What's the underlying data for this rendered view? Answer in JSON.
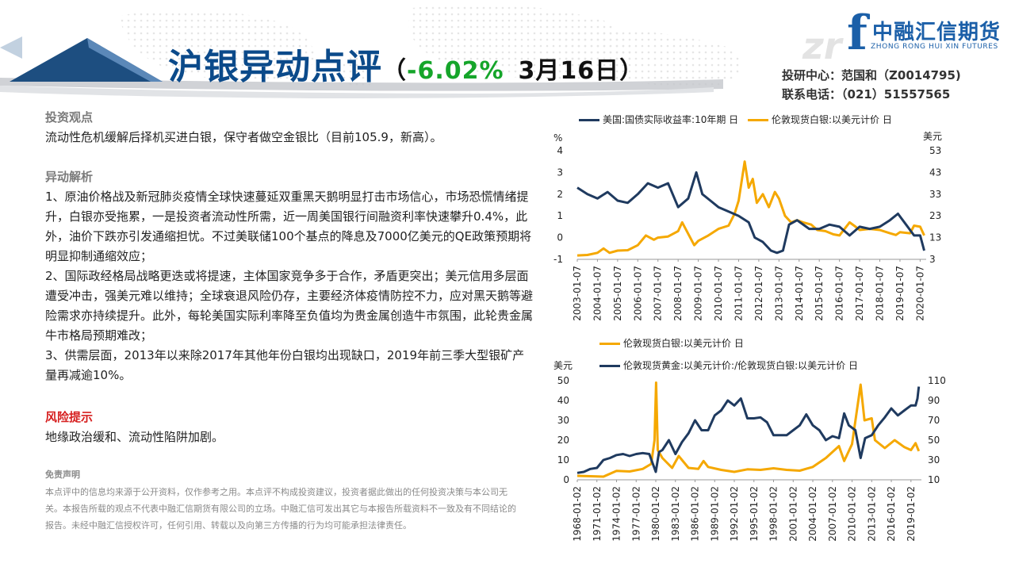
{
  "header": {
    "title_part1": "沪银",
    "title_part2": "异动点评",
    "paren_open": "（",
    "pct": "-6.02%",
    "date": "3月16日",
    "paren_close": "）"
  },
  "logo": {
    "cn": "中融汇信期货",
    "en": "ZHONG RONG HUI XIN FUTURES",
    "mark": "f"
  },
  "contact": {
    "line1": "投研中心：范国和（Z0014795)",
    "line2": "联系电话：（021）51557565"
  },
  "sections": {
    "view_title": "投资观点",
    "view_text": "流动性危机缓解后择机买进白银，保守者做空金银比（目前105.9，新高）。",
    "analysis_title": "异动解析",
    "analysis_items": [
      "1、原油价格战及新冠肺炎疫情全球快速蔓延双重黑天鹅明显打击市场信心，市场恐慌情绪提升，白银亦受拖累，一是投资者流动性所需，近一周美国银行间融资利率快速攀升0.4%，此外，油价下跌亦引发通缩担忧。不过美联储100个基点的降息及7000亿美元的QE政策预期将明显抑制通缩效应；",
      "2、国际政经格局战略更迭或将提速，主体国家竞争多于合作，矛盾更突出；美元信用多层面遭受冲击，强美元难以维持；全球衰退风险仍存，主要经济体疫情防控不力，应对黑天鹅等避险需求亦持续提升。此外，每轮美国实际利率降至负值均为贵金属创造牛市氛围，此轮贵金属牛市格局预期难改；",
      "3、供需层面，2013年以来除2017年其他年份白银均出现缺口，2019年前三季大型银矿产量再减逾10%。"
    ],
    "risk_title": "风险提示",
    "risk_text": "地缘政治缓和、流动性陷阱加剧。",
    "disclaimer_title": "免责声明",
    "disclaimer_text": "本点评中的信息均来源于公开资料，仅作参考之用。本点评不构成投资建议，投资者据此做出的任何投资决策与本公司无关。本报告所载的观点不代表中融汇信期货有限公司的立场。中融汇信可发出其它与本报告所载资料不一致及有不同结论的报告。未经中融汇信授权许可，任何引用、转载以及向第三方传播的行为均可能承担法律责任。"
  },
  "colors": {
    "navy": "#1f3a5f",
    "gold": "#f5a800",
    "title_blue": "#0b4a8a",
    "green": "#15a52a",
    "red": "#d61f1f"
  },
  "chart_data": [
    {
      "type": "line",
      "legend_position": "top",
      "left_unit": "%",
      "right_unit": "美元",
      "left_ylim": [
        -1,
        4
      ],
      "left_ticks": [
        "-1",
        "0",
        "1",
        "2",
        "3",
        "4"
      ],
      "right_ylim": [
        3,
        53
      ],
      "right_ticks": [
        "3",
        "13",
        "23",
        "33",
        "43",
        "53"
      ],
      "x_ticks": [
        "2003-01-07",
        "2004-01-07",
        "2005-01-07",
        "2006-01-07",
        "2007-01-07",
        "2008-01-07",
        "2009-01-07",
        "2010-01-07",
        "2011-01-07",
        "2012-01-07",
        "2013-01-07",
        "2014-01-07",
        "2015-01-07",
        "2016-01-07",
        "2017-01-07",
        "2018-01-07",
        "2019-01-07",
        "2020-01-07"
      ],
      "series": [
        {
          "name": "美国:国债实际收益率:10年期 日",
          "axis": "left",
          "color": "#1f3a5f",
          "points": [
            [
              2003.0,
              2.3
            ],
            [
              2003.5,
              2.0
            ],
            [
              2004.0,
              1.8
            ],
            [
              2004.5,
              2.1
            ],
            [
              2005.0,
              1.7
            ],
            [
              2005.5,
              1.6
            ],
            [
              2006.0,
              2.0
            ],
            [
              2006.5,
              2.5
            ],
            [
              2007.0,
              2.3
            ],
            [
              2007.5,
              2.5
            ],
            [
              2008.0,
              1.4
            ],
            [
              2008.5,
              1.8
            ],
            [
              2008.9,
              3.0
            ],
            [
              2009.2,
              2.0
            ],
            [
              2009.6,
              1.7
            ],
            [
              2010.0,
              1.4
            ],
            [
              2010.5,
              1.2
            ],
            [
              2011.0,
              1.0
            ],
            [
              2011.5,
              0.7
            ],
            [
              2011.8,
              0.0
            ],
            [
              2012.2,
              -0.2
            ],
            [
              2012.6,
              -0.6
            ],
            [
              2012.9,
              -0.7
            ],
            [
              2013.2,
              -0.6
            ],
            [
              2013.5,
              0.6
            ],
            [
              2013.9,
              0.8
            ],
            [
              2014.5,
              0.4
            ],
            [
              2015.0,
              0.4
            ],
            [
              2015.5,
              0.6
            ],
            [
              2016.0,
              0.5
            ],
            [
              2016.5,
              0.1
            ],
            [
              2017.0,
              0.5
            ],
            [
              2017.5,
              0.4
            ],
            [
              2018.0,
              0.5
            ],
            [
              2018.5,
              0.8
            ],
            [
              2018.9,
              1.1
            ],
            [
              2019.3,
              0.6
            ],
            [
              2019.7,
              0.1
            ],
            [
              2020.0,
              0.1
            ],
            [
              2020.2,
              -0.6
            ]
          ]
        },
        {
          "name": "伦敦现货白银:以美元计价 日",
          "axis": "right",
          "color": "#f5a800",
          "points": [
            [
              2003.0,
              4.8
            ],
            [
              2003.5,
              5.0
            ],
            [
              2004.0,
              6.0
            ],
            [
              2004.3,
              8.0
            ],
            [
              2004.6,
              6.0
            ],
            [
              2005.0,
              7.0
            ],
            [
              2005.5,
              7.2
            ],
            [
              2006.0,
              9.5
            ],
            [
              2006.4,
              14.0
            ],
            [
              2006.8,
              12.0
            ],
            [
              2007.0,
              13.0
            ],
            [
              2007.5,
              13.5
            ],
            [
              2008.0,
              16.0
            ],
            [
              2008.2,
              20.0
            ],
            [
              2008.8,
              9.5
            ],
            [
              2009.0,
              11.5
            ],
            [
              2009.5,
              14.0
            ],
            [
              2010.0,
              17.0
            ],
            [
              2010.5,
              18.5
            ],
            [
              2010.8,
              24.0
            ],
            [
              2011.0,
              30.0
            ],
            [
              2011.3,
              48.0
            ],
            [
              2011.5,
              36.0
            ],
            [
              2011.7,
              40.0
            ],
            [
              2011.9,
              29.0
            ],
            [
              2012.2,
              33.0
            ],
            [
              2012.5,
              27.0
            ],
            [
              2012.8,
              34.0
            ],
            [
              2013.0,
              31.0
            ],
            [
              2013.3,
              23.0
            ],
            [
              2013.6,
              20.0
            ],
            [
              2013.9,
              21.0
            ],
            [
              2014.2,
              20.0
            ],
            [
              2014.6,
              19.0
            ],
            [
              2014.9,
              16.5
            ],
            [
              2015.3,
              16.0
            ],
            [
              2015.7,
              14.5
            ],
            [
              2016.0,
              14.0
            ],
            [
              2016.5,
              20.0
            ],
            [
              2016.8,
              18.0
            ],
            [
              2017.0,
              16.5
            ],
            [
              2017.5,
              17.0
            ],
            [
              2018.0,
              16.5
            ],
            [
              2018.5,
              15.0
            ],
            [
              2018.8,
              14.2
            ],
            [
              2019.0,
              15.5
            ],
            [
              2019.5,
              15.0
            ],
            [
              2019.7,
              18.5
            ],
            [
              2020.0,
              18.0
            ],
            [
              2020.2,
              14.0
            ]
          ]
        }
      ]
    },
    {
      "type": "line",
      "legend_position": "top",
      "left_unit": "美元",
      "left_ylim": [
        0,
        50
      ],
      "left_ticks": [
        "0",
        "10",
        "20",
        "30",
        "40",
        "50"
      ],
      "right_ylim": [
        10,
        110
      ],
      "right_ticks": [
        "10",
        "30",
        "50",
        "70",
        "90",
        "110"
      ],
      "x_ticks": [
        "1968-01-02",
        "1971-01-02",
        "1974-01-02",
        "1977-01-02",
        "1980-01-02",
        "1983-01-02",
        "1986-01-02",
        "1989-01-02",
        "1992-01-02",
        "1995-01-02",
        "1998-01-02",
        "2001-01-02",
        "2004-01-02",
        "2007-01-02",
        "2010-01-02",
        "2013-01-02",
        "2016-01-02",
        "2019-01-02"
      ],
      "series": [
        {
          "name": "伦敦现货白银:以美元计价 日",
          "axis": "left",
          "color": "#f5a800",
          "points": [
            [
              1968.0,
              2.0
            ],
            [
              1972.0,
              1.6
            ],
            [
              1974.0,
              4.5
            ],
            [
              1976.0,
              4.2
            ],
            [
              1978.0,
              5.5
            ],
            [
              1979.3,
              8.0
            ],
            [
              1979.8,
              20.0
            ],
            [
              1980.05,
              49.0
            ],
            [
              1980.3,
              15.0
            ],
            [
              1981.0,
              11.0
            ],
            [
              1982.5,
              6.0
            ],
            [
              1983.5,
              12.0
            ],
            [
              1985.0,
              6.0
            ],
            [
              1986.5,
              5.5
            ],
            [
              1987.3,
              9.5
            ],
            [
              1988.0,
              6.5
            ],
            [
              1990.0,
              5.0
            ],
            [
              1992.0,
              4.0
            ],
            [
              1994.0,
              5.3
            ],
            [
              1996.0,
              5.0
            ],
            [
              1998.0,
              5.8
            ],
            [
              2000.0,
              5.0
            ],
            [
              2002.0,
              4.6
            ],
            [
              2004.0,
              6.5
            ],
            [
              2006.0,
              11.0
            ],
            [
              2008.0,
              17.0
            ],
            [
              2008.8,
              9.5
            ],
            [
              2010.0,
              18.0
            ],
            [
              2011.3,
              48.0
            ],
            [
              2011.9,
              30.0
            ],
            [
              2013.0,
              31.0
            ],
            [
              2013.5,
              20.0
            ],
            [
              2015.0,
              16.0
            ],
            [
              2016.5,
              20.0
            ],
            [
              2018.0,
              16.5
            ],
            [
              2019.0,
              15.0
            ],
            [
              2019.7,
              18.5
            ],
            [
              2020.2,
              14.5
            ]
          ]
        },
        {
          "name": "伦敦现货黄金:以美元计价:/伦敦现货白银:以美元计价 日",
          "axis": "right",
          "color": "#1f3a5f",
          "points": [
            [
              1968.0,
              17.0
            ],
            [
              1969.0,
              18.0
            ],
            [
              1970.0,
              21.0
            ],
            [
              1971.0,
              22.0
            ],
            [
              1972.0,
              30.0
            ],
            [
              1973.0,
              32.0
            ],
            [
              1974.0,
              35.0
            ],
            [
              1975.0,
              36.0
            ],
            [
              1976.0,
              34.0
            ],
            [
              1977.0,
              36.0
            ],
            [
              1978.0,
              37.0
            ],
            [
              1979.0,
              36.0
            ],
            [
              1980.0,
              18.0
            ],
            [
              1980.5,
              38.0
            ],
            [
              1981.0,
              40.0
            ],
            [
              1982.0,
              50.0
            ],
            [
              1983.0,
              36.0
            ],
            [
              1984.0,
              48.0
            ],
            [
              1985.0,
              57.0
            ],
            [
              1986.0,
              70.0
            ],
            [
              1987.0,
              60.0
            ],
            [
              1988.0,
              60.0
            ],
            [
              1989.0,
              75.0
            ],
            [
              1990.0,
              80.0
            ],
            [
              1991.0,
              90.0
            ],
            [
              1992.0,
              85.0
            ],
            [
              1993.0,
              92.0
            ],
            [
              1994.0,
              72.0
            ],
            [
              1995.0,
              72.0
            ],
            [
              1996.0,
              73.0
            ],
            [
              1997.0,
              68.0
            ],
            [
              1998.0,
              55.0
            ],
            [
              1999.0,
              55.0
            ],
            [
              2000.0,
              55.0
            ],
            [
              2001.0,
              60.0
            ],
            [
              2002.0,
              65.0
            ],
            [
              2003.0,
              76.0
            ],
            [
              2004.0,
              65.0
            ],
            [
              2005.0,
              60.0
            ],
            [
              2006.0,
              50.0
            ],
            [
              2007.0,
              54.0
            ],
            [
              2008.0,
              52.0
            ],
            [
              2008.8,
              77.0
            ],
            [
              2009.5,
              65.0
            ],
            [
              2010.5,
              60.0
            ],
            [
              2011.3,
              32.0
            ],
            [
              2012.0,
              52.0
            ],
            [
              2013.0,
              55.0
            ],
            [
              2014.0,
              65.0
            ],
            [
              2015.0,
              73.0
            ],
            [
              2016.0,
              82.0
            ],
            [
              2017.0,
              75.0
            ],
            [
              2018.0,
              80.0
            ],
            [
              2019.0,
              85.0
            ],
            [
              2019.7,
              85.0
            ],
            [
              2020.0,
              92.0
            ],
            [
              2020.2,
              104.0
            ]
          ]
        }
      ]
    }
  ]
}
